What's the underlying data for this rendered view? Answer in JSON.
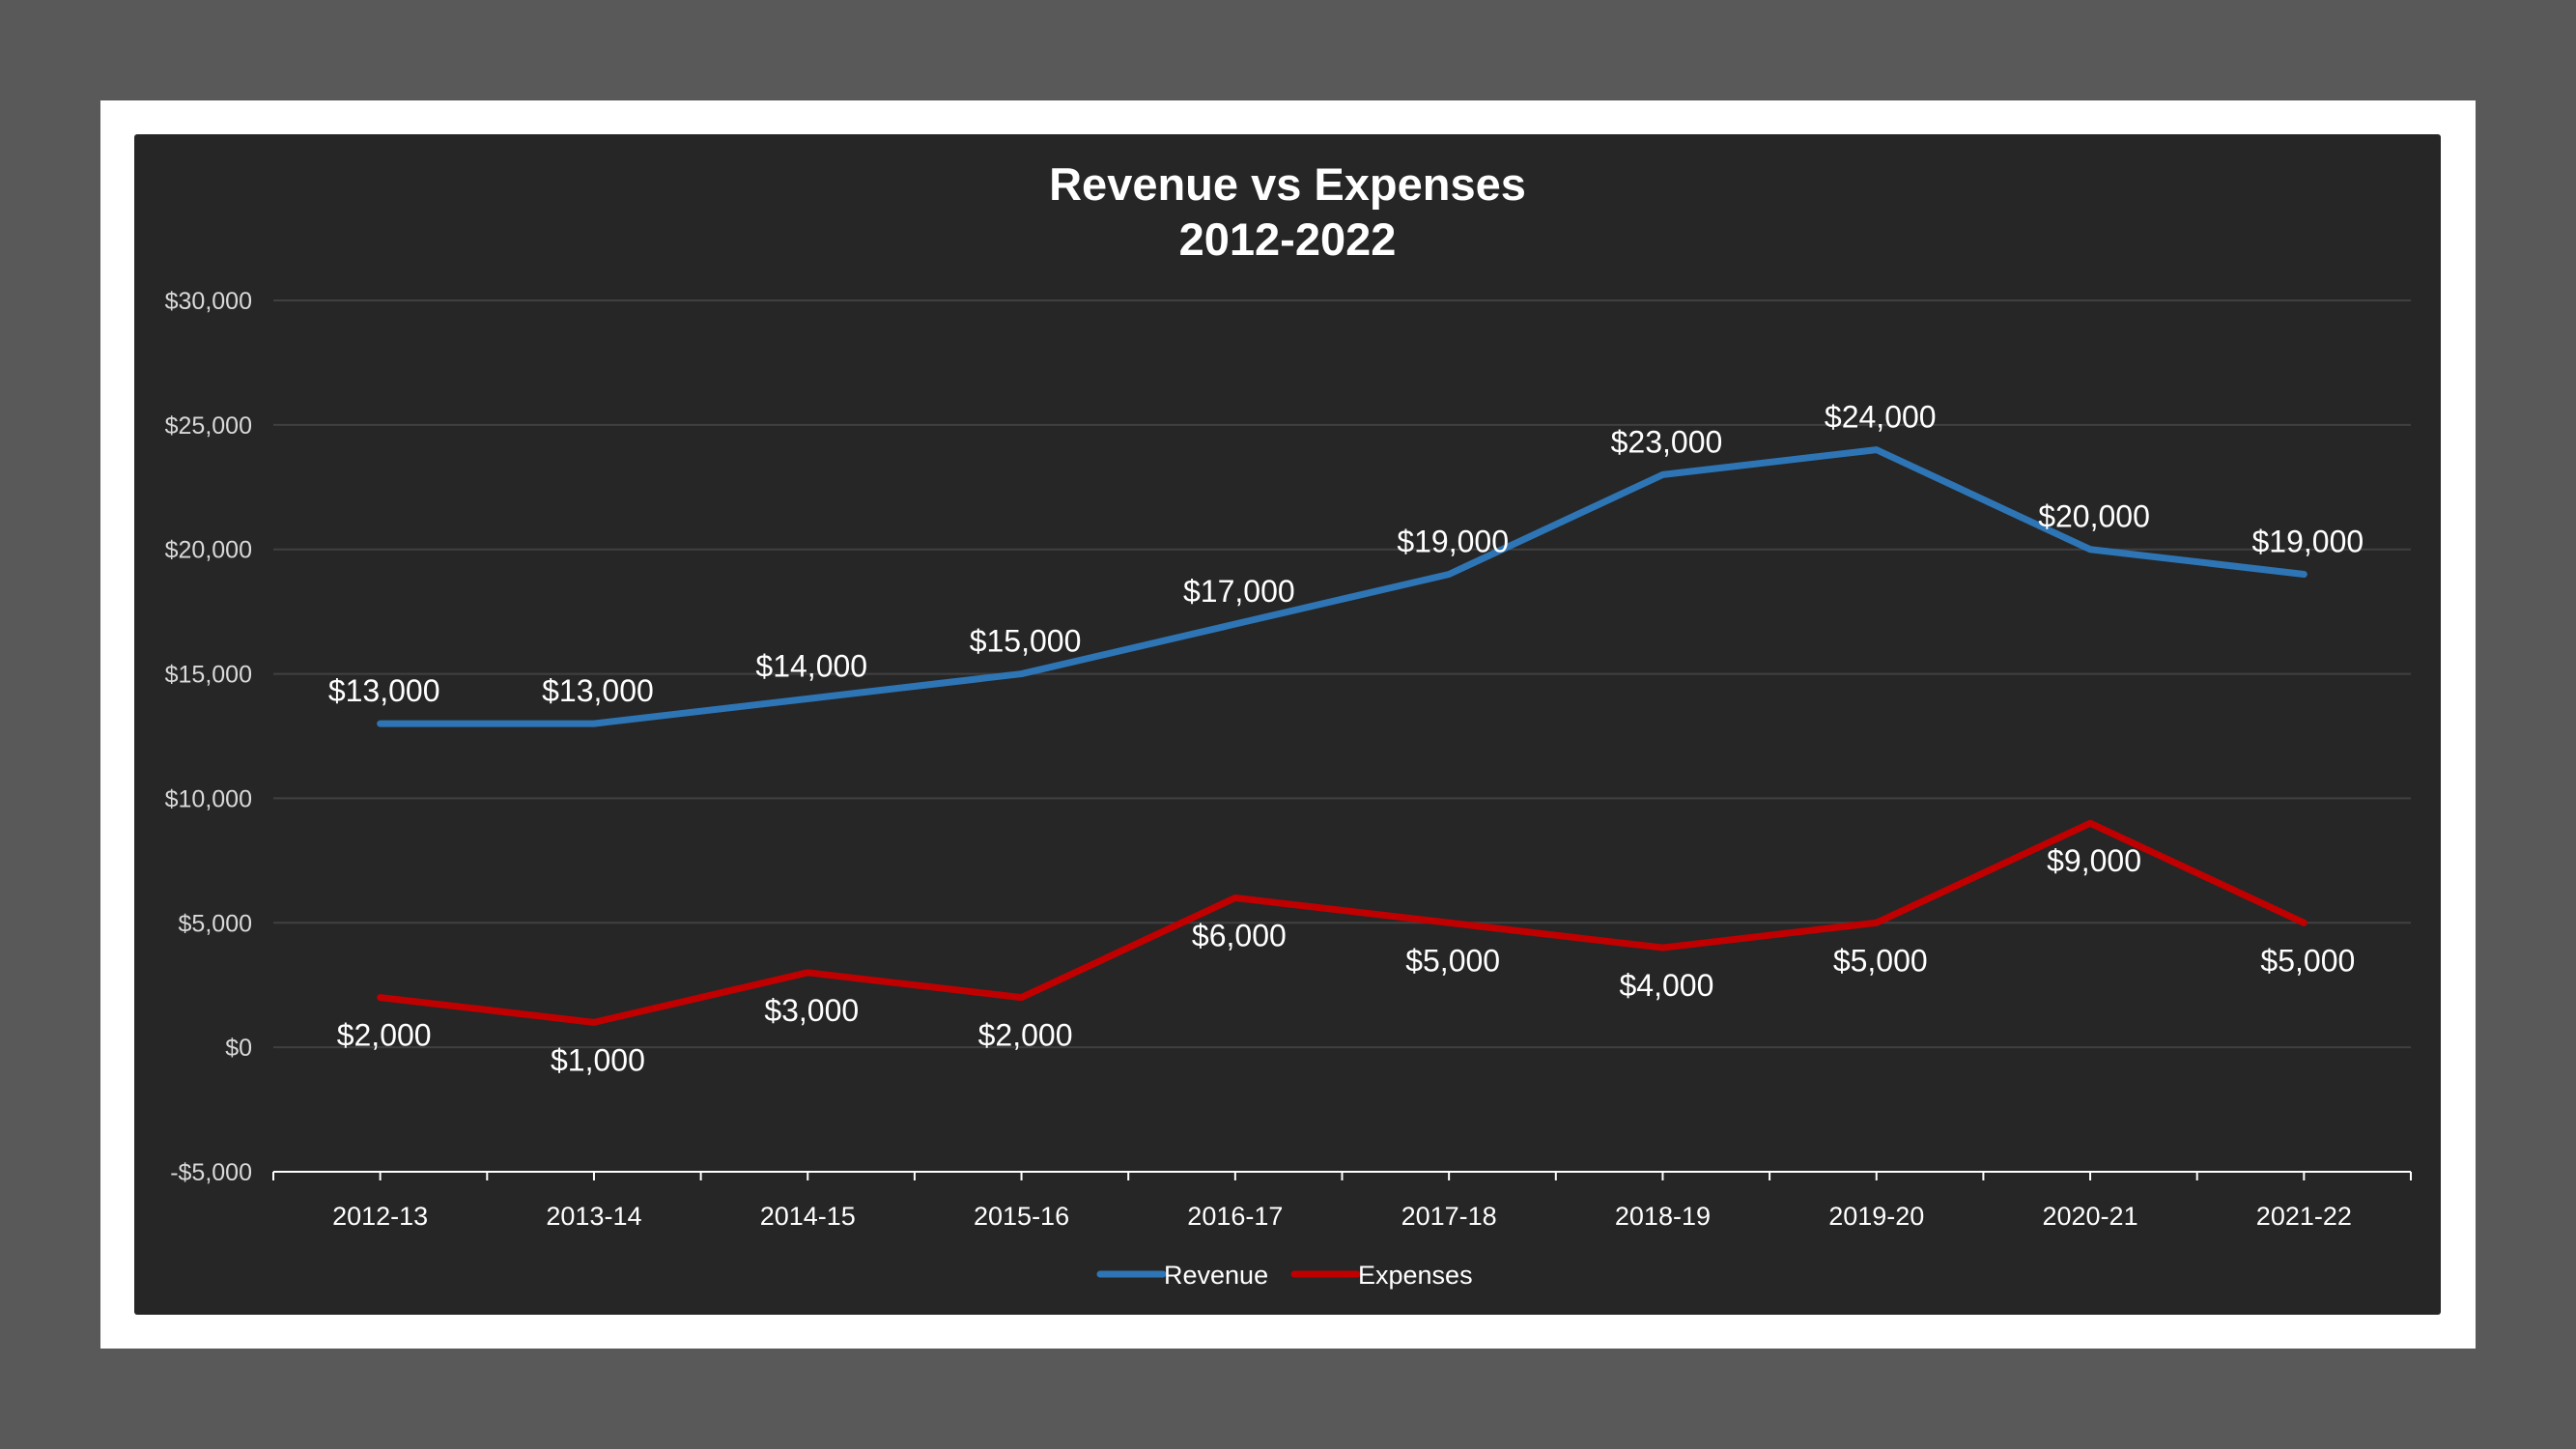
{
  "colors": {
    "page_background": "#595959",
    "frame": "#ffffff",
    "plot_background": "#262626",
    "gridline": "#404040",
    "axis": "#ffffff",
    "revenue": "#2e75b6",
    "expenses": "#c00000"
  },
  "chart_data": {
    "type": "line",
    "title": [
      "Revenue vs Expenses",
      "2012-2022"
    ],
    "xlabel": "",
    "ylabel": "",
    "categories": [
      "2012-13",
      "2013-14",
      "2014-15",
      "2015-16",
      "2016-17",
      "2017-18",
      "2018-19",
      "2019-20",
      "2020-21",
      "2021-22"
    ],
    "ylim": [
      -5000,
      30000
    ],
    "ytick_values": [
      -5000,
      0,
      5000,
      10000,
      15000,
      20000,
      25000,
      30000
    ],
    "ytick_labels": [
      "-$5,000",
      "$0",
      "$5,000",
      "$10,000",
      "$15,000",
      "$20,000",
      "$25,000",
      "$30,000"
    ],
    "grid": true,
    "legend_position": "bottom",
    "series": [
      {
        "name": "Revenue",
        "color": "#2e75b6",
        "values": [
          13000,
          13000,
          14000,
          15000,
          17000,
          19000,
          23000,
          24000,
          20000,
          19000
        ],
        "data_labels": [
          "$13,000",
          "$13,000",
          "$14,000",
          "$15,000",
          "$17,000",
          "$19,000",
          "$23,000",
          "$24,000",
          "$20,000",
          "$19,000"
        ],
        "label_position": "above"
      },
      {
        "name": "Expenses",
        "color": "#c00000",
        "values": [
          2000,
          1000,
          3000,
          2000,
          6000,
          5000,
          4000,
          5000,
          9000,
          5000
        ],
        "data_labels": [
          "$2,000",
          "$1,000",
          "$3,000",
          "$2,000",
          "$6,000",
          "$5,000",
          "$4,000",
          "$5,000",
          "$9,000",
          "$5,000"
        ],
        "label_position": "below"
      }
    ]
  }
}
